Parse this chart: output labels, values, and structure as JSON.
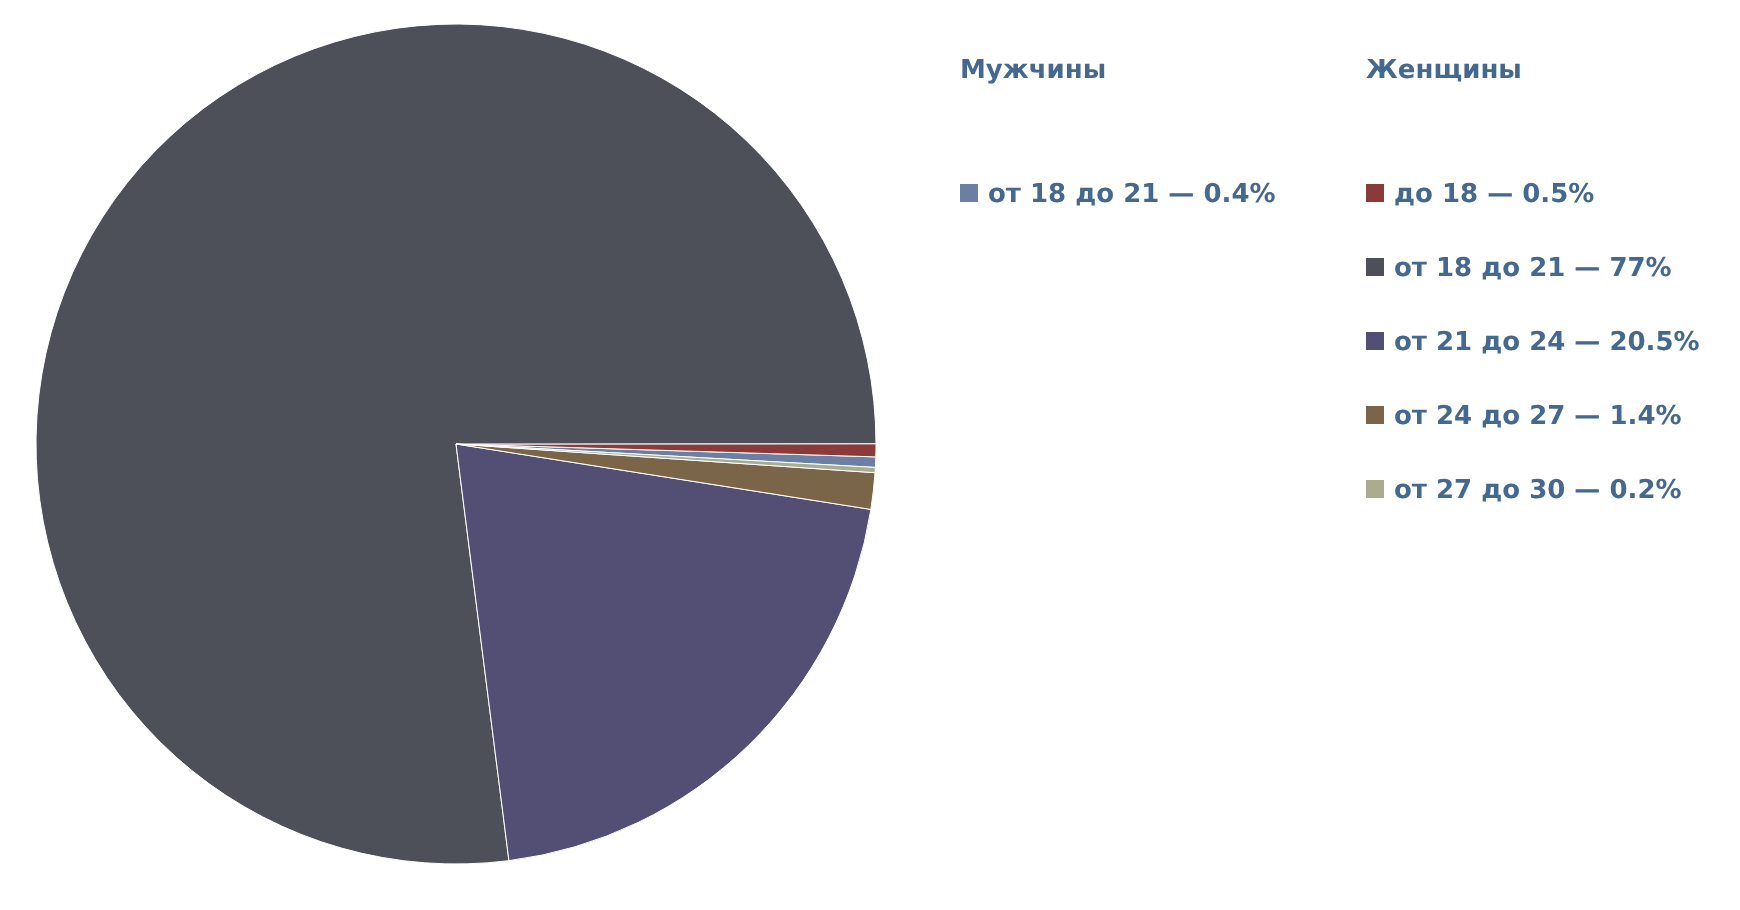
{
  "chart_data": {
    "type": "pie",
    "legend": "right",
    "annotations": [
      "Мужчины",
      "Женщины"
    ],
    "categories": [
      "от 18 до 21 — 0.4%",
      "до 18 — 0.5%",
      "от 18 до 21 — 77%",
      "от 21 до 24 — 20.5%",
      "от 24 до 27 — 1.4%",
      "от 27 до 30 — 0.2%"
    ],
    "values": [
      0.4,
      0.5,
      77,
      20.5,
      1.4,
      0.2
    ],
    "colors": [
      "#6a7fa3",
      "#8b3a3a",
      "#4d5059",
      "#534f74",
      "#7a6548",
      "#a9ac8e"
    ]
  }
}
